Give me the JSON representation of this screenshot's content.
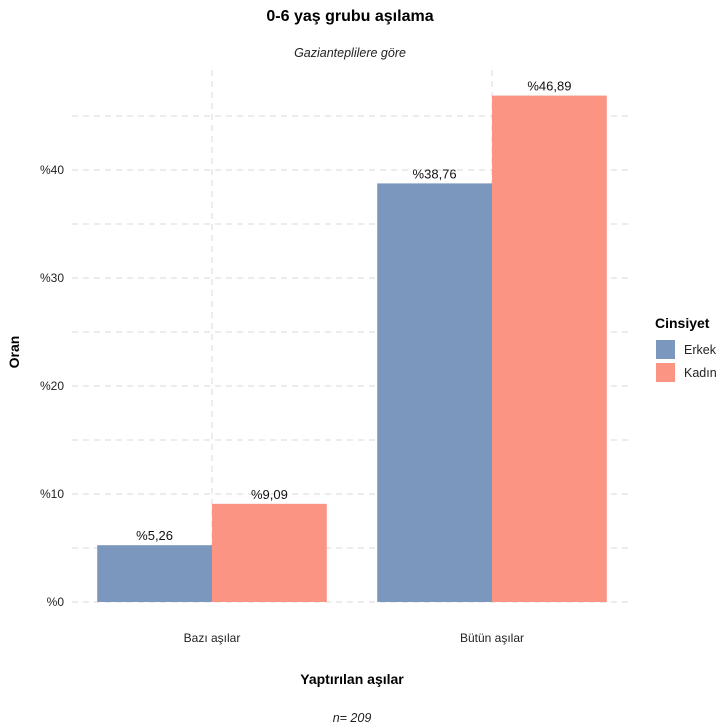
{
  "chart_data": {
    "type": "bar",
    "title": "0-6 yaş grubu aşılama",
    "subtitle": "Gazianteplilere göre",
    "xlabel": "Yaptırılan aşılar",
    "ylabel": "Oran",
    "caption": "n=  209",
    "categories": [
      "Bazı aşılar",
      "Bütün aşılar"
    ],
    "series": [
      {
        "name": "Erkek",
        "color": "#7b97bd",
        "values": [
          5.26,
          38.76
        ],
        "labels": [
          "%5,26",
          "%38,76"
        ]
      },
      {
        "name": "Kadın",
        "color": "#fb9483",
        "values": [
          9.09,
          46.89
        ],
        "labels": [
          "%9,09",
          "%46,89"
        ]
      }
    ],
    "ylim": [
      0,
      48
    ],
    "yticks": [
      0,
      10,
      20,
      30,
      40
    ],
    "ytick_labels": [
      "%0",
      "%10",
      "%20",
      "%30",
      "%40"
    ],
    "grid": true,
    "legend": {
      "title": "Cinsiyet",
      "position": "right"
    }
  }
}
